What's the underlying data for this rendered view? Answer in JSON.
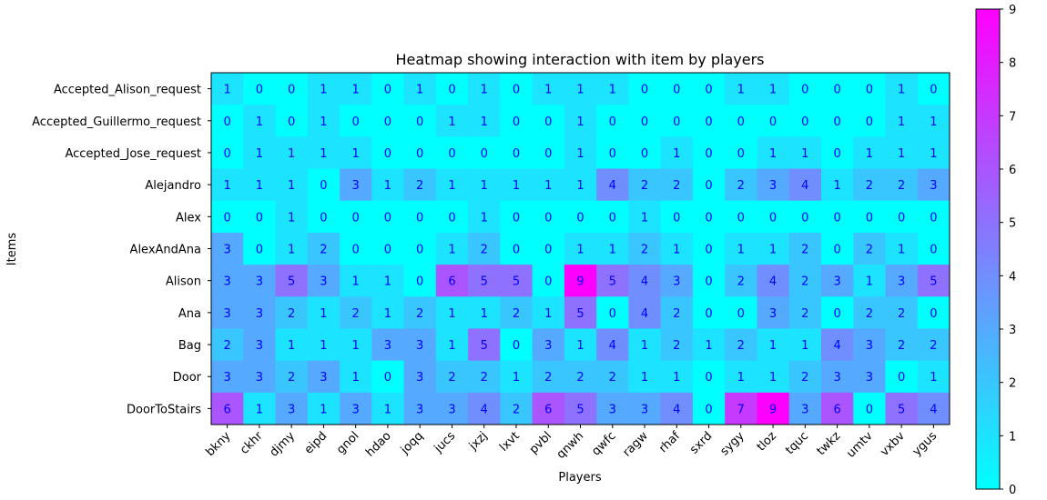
{
  "chart_data": {
    "type": "heatmap",
    "title": "Heatmap showing interaction with item by players",
    "xlabel": "Players",
    "ylabel": "Items",
    "x_categories": [
      "bkny",
      "ckhr",
      "djmy",
      "eipd",
      "gnol",
      "hdao",
      "joqq",
      "jucs",
      "jxzj",
      "lxvt",
      "pvbl",
      "qnwh",
      "qwfc",
      "ragw",
      "rhaf",
      "sxrd",
      "sygy",
      "tloz",
      "tquc",
      "twkz",
      "umtv",
      "vxbv",
      "ygus"
    ],
    "y_categories": [
      "Accepted_Alison_request",
      "Accepted_Guillermo_request",
      "Accepted_Jose_request",
      "Alejandro",
      "Alex",
      "AlexAndAna",
      "Alison",
      "Ana",
      "Bag",
      "Door",
      "DoorToStairs"
    ],
    "values": [
      [
        1,
        0,
        0,
        1,
        1,
        0,
        1,
        0,
        1,
        0,
        1,
        1,
        1,
        0,
        0,
        0,
        1,
        1,
        0,
        0,
        0,
        1,
        0
      ],
      [
        0,
        1,
        0,
        1,
        0,
        0,
        0,
        1,
        1,
        0,
        0,
        1,
        0,
        0,
        0,
        0,
        0,
        0,
        0,
        0,
        0,
        1,
        1
      ],
      [
        0,
        1,
        1,
        1,
        1,
        0,
        0,
        0,
        0,
        0,
        0,
        1,
        0,
        0,
        1,
        0,
        0,
        1,
        1,
        0,
        1,
        1,
        1
      ],
      [
        1,
        1,
        1,
        0,
        3,
        1,
        2,
        1,
        1,
        1,
        1,
        1,
        4,
        2,
        2,
        0,
        2,
        3,
        4,
        1,
        2,
        2,
        3
      ],
      [
        0,
        0,
        1,
        0,
        0,
        0,
        0,
        0,
        1,
        0,
        0,
        0,
        0,
        1,
        0,
        0,
        0,
        0,
        0,
        0,
        0,
        0,
        0
      ],
      [
        3,
        0,
        1,
        2,
        0,
        0,
        0,
        1,
        2,
        0,
        0,
        1,
        1,
        2,
        1,
        0,
        1,
        1,
        2,
        0,
        2,
        1,
        0
      ],
      [
        3,
        3,
        5,
        3,
        1,
        1,
        0,
        6,
        5,
        5,
        0,
        9,
        5,
        4,
        3,
        0,
        2,
        4,
        2,
        3,
        1,
        3,
        5
      ],
      [
        3,
        3,
        2,
        1,
        2,
        1,
        2,
        1,
        1,
        2,
        1,
        5,
        0,
        4,
        2,
        0,
        0,
        3,
        2,
        0,
        2,
        2,
        0
      ],
      [
        2,
        3,
        1,
        1,
        1,
        3,
        3,
        1,
        5,
        0,
        3,
        1,
        4,
        1,
        2,
        1,
        2,
        1,
        1,
        4,
        3,
        2,
        2
      ],
      [
        3,
        3,
        2,
        3,
        1,
        0,
        3,
        2,
        2,
        1,
        2,
        2,
        2,
        1,
        1,
        0,
        1,
        1,
        2,
        3,
        3,
        0,
        1
      ],
      [
        6,
        1,
        3,
        1,
        3,
        1,
        3,
        3,
        4,
        2,
        6,
        5,
        3,
        3,
        4,
        0,
        7,
        9,
        3,
        6,
        0,
        5,
        4
      ]
    ],
    "colormap": "cool",
    "color_min": "#00ffff",
    "color_max": "#ff00ff",
    "vmin": 0,
    "vmax": 9,
    "colorbar_ticks": [
      "0",
      "1",
      "2",
      "3",
      "4",
      "5",
      "6",
      "7",
      "8",
      "9"
    ],
    "cell_label_color": "#0000ff"
  }
}
